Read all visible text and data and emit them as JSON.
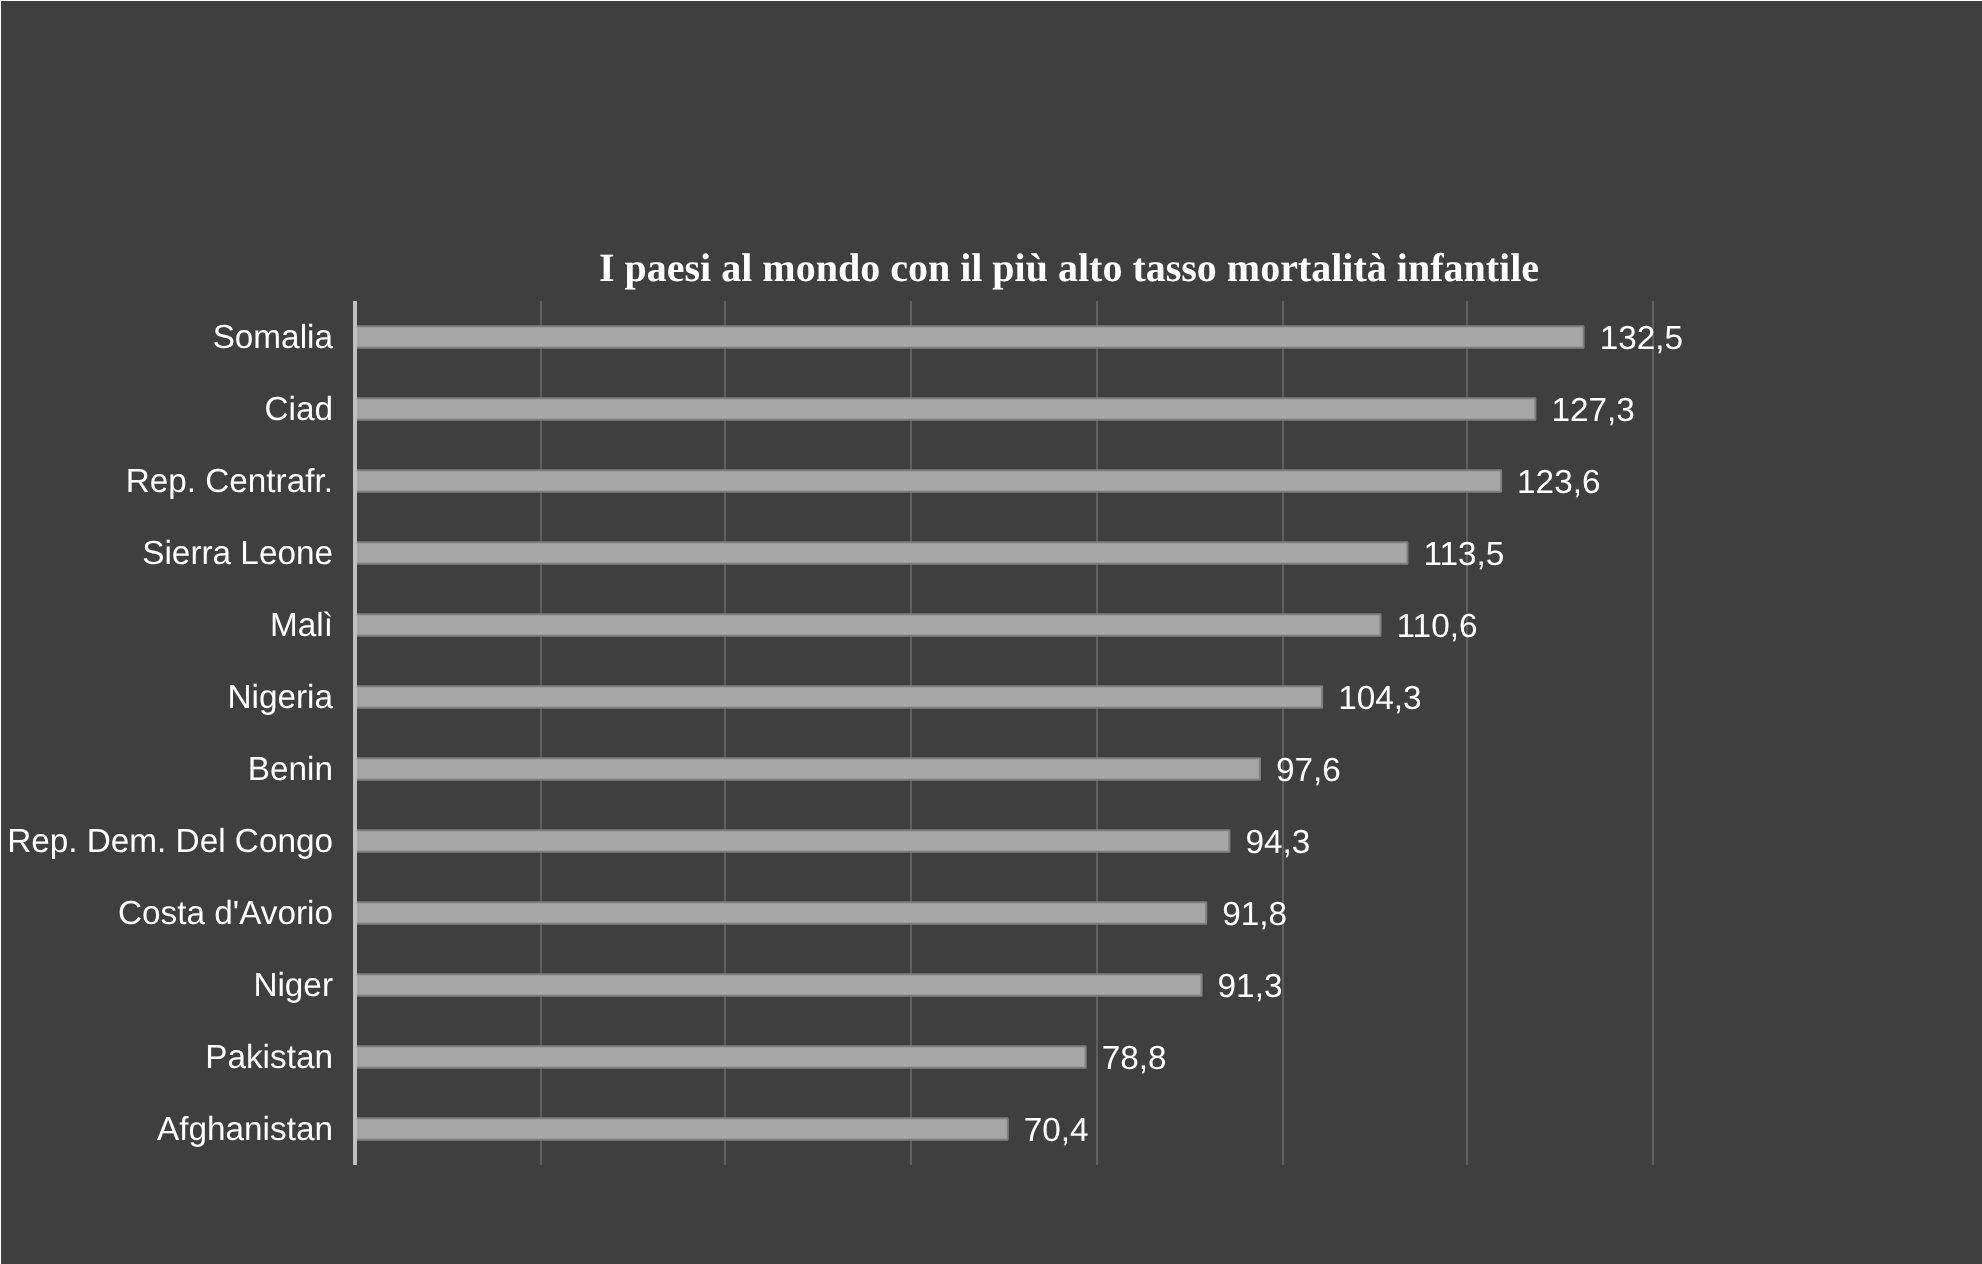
{
  "chart_data": {
    "type": "bar",
    "orientation": "horizontal",
    "title": "I paesi al mondo con il più alto tasso mortalità infantile",
    "categories": [
      "Somalia",
      "Ciad",
      "Rep. Centrafr.",
      "Sierra Leone",
      "Malì",
      "Nigeria",
      "Benin",
      "Rep. Dem. Del Congo",
      "Costa d'Avorio",
      "Niger",
      "Pakistan",
      "Afghanistan"
    ],
    "values": [
      132.5,
      127.3,
      123.6,
      113.5,
      110.6,
      104.3,
      97.6,
      94.3,
      91.8,
      91.3,
      78.8,
      70.4
    ],
    "value_labels": [
      "132,5",
      "127,3",
      "123,6",
      "113,5",
      "110,6",
      "104,3",
      "97,6",
      "94,3",
      "91,8",
      "91,3",
      "78,8",
      "70,4"
    ],
    "color": "#a6a6a6",
    "xlim": [
      0,
      140
    ],
    "xticks": [
      {
        "value": 0,
        "label": null
      },
      {
        "value": 20,
        "label": null
      },
      {
        "value": 40,
        "label": null
      },
      {
        "value": 60,
        "label": null
      },
      {
        "value": 80,
        "label": null
      },
      {
        "value": 100,
        "label": null
      },
      {
        "value": 120,
        "label": null
      },
      {
        "value": 140,
        "label": null
      }
    ],
    "grid": "x",
    "tick_labels": "y"
  }
}
